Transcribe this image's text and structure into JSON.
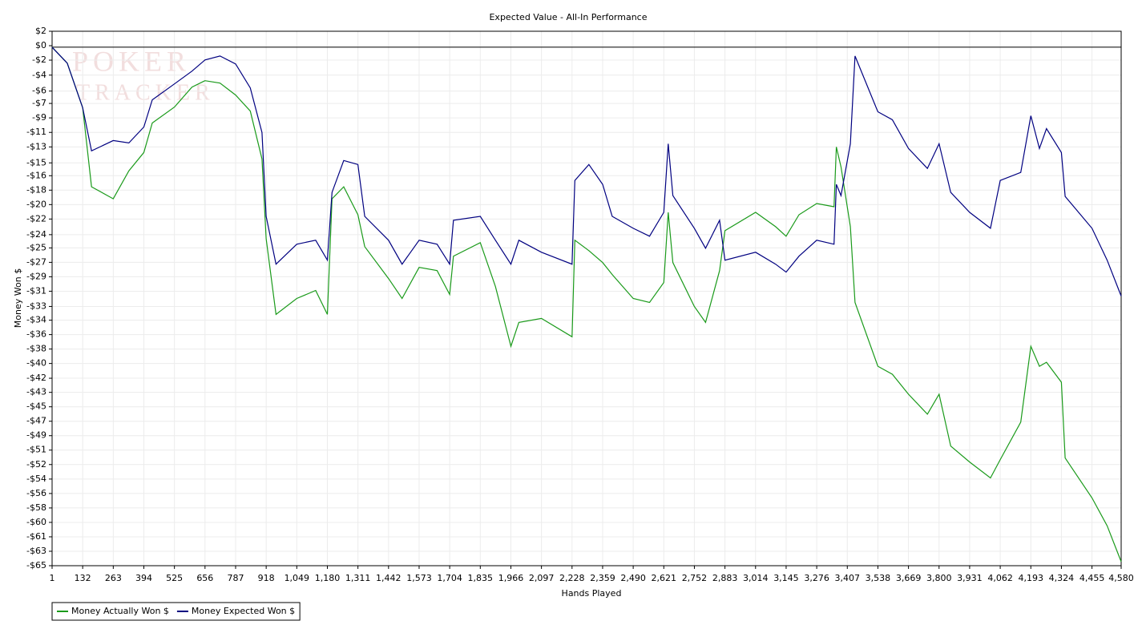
{
  "chart_data": {
    "type": "line",
    "title": "Expected Value - All-In Performance",
    "x_label": "Hands Played",
    "y_label": "Money Won $",
    "annotations": [
      "POKER",
      "TRACKER"
    ],
    "grid": true,
    "legend": "bottom-left",
    "xlim": [
      1,
      4580
    ],
    "ylim": [
      -65,
      2
    ],
    "xticks": [
      1,
      132,
      263,
      394,
      525,
      656,
      787,
      918,
      {
        "value": 1049,
        "label": "1,049"
      },
      {
        "value": 1180,
        "label": "1,180"
      },
      {
        "value": 1311,
        "label": "1,311"
      },
      {
        "value": 1442,
        "label": "1,442"
      },
      {
        "value": 1573,
        "label": "1,573"
      },
      {
        "value": 1704,
        "label": "1,704"
      },
      {
        "value": 1835,
        "label": "1,835"
      },
      {
        "value": 1966,
        "label": "1,966"
      },
      {
        "value": 2097,
        "label": "2,097"
      },
      {
        "value": 2228,
        "label": "2,228"
      },
      {
        "value": 2359,
        "label": "2,359"
      },
      {
        "value": 2490,
        "label": "2,490"
      },
      {
        "value": 2621,
        "label": "2,621"
      },
      {
        "value": 2752,
        "label": "2,752"
      },
      {
        "value": 2883,
        "label": "2,883"
      },
      {
        "value": 3014,
        "label": "3,014"
      },
      {
        "value": 3145,
        "label": "3,145"
      },
      {
        "value": 3276,
        "label": "3,276"
      },
      {
        "value": 3407,
        "label": "3,407"
      },
      {
        "value": 3538,
        "label": "3,538"
      },
      {
        "value": 3669,
        "label": "3,669"
      },
      {
        "value": 3800,
        "label": "3,800"
      },
      {
        "value": 3931,
        "label": "3,931"
      },
      {
        "value": 4062,
        "label": "4,062"
      },
      {
        "value": 4193,
        "label": "4,193"
      },
      {
        "value": 4324,
        "label": "4,324"
      },
      {
        "value": 4455,
        "label": "4,455"
      },
      {
        "value": 4580,
        "label": "4,580"
      }
    ],
    "yticks": [
      {
        "value": 2,
        "label": "$2"
      },
      {
        "value": 0.19,
        "label": "$0"
      },
      {
        "value": -1.62,
        "label": "-$2"
      },
      {
        "value": -3.5,
        "label": "-$4"
      },
      {
        "value": -5.5,
        "label": "-$6"
      },
      {
        "value": -7.05,
        "label": "-$7"
      },
      {
        "value": -8.86,
        "label": "-$9"
      },
      {
        "value": -10.68,
        "label": "-$11"
      },
      {
        "value": -12.5,
        "label": "-$13"
      },
      {
        "value": -14.5,
        "label": "-$15"
      },
      {
        "value": -16.11,
        "label": "-$16"
      },
      {
        "value": -17.92,
        "label": "-$18"
      },
      {
        "value": -19.73,
        "label": "-$20"
      },
      {
        "value": -21.54,
        "label": "-$22"
      },
      {
        "value": -23.5,
        "label": "-$24"
      },
      {
        "value": -25.16,
        "label": "-$25"
      },
      {
        "value": -26.97,
        "label": "-$27"
      },
      {
        "value": -28.78,
        "label": "-$29"
      },
      {
        "value": -30.59,
        "label": "-$31"
      },
      {
        "value": -32.5,
        "label": "-$33"
      },
      {
        "value": -34.22,
        "label": "-$34"
      },
      {
        "value": -36.03,
        "label": "-$36"
      },
      {
        "value": -37.84,
        "label": "-$38"
      },
      {
        "value": -39.65,
        "label": "-$40"
      },
      {
        "value": -41.5,
        "label": "-$42"
      },
      {
        "value": -43.27,
        "label": "-$43"
      },
      {
        "value": -45.08,
        "label": "-$45"
      },
      {
        "value": -46.89,
        "label": "-$47"
      },
      {
        "value": -48.7,
        "label": "-$49"
      },
      {
        "value": -50.51,
        "label": "-$51"
      },
      {
        "value": -52.32,
        "label": "-$52"
      },
      {
        "value": -54.14,
        "label": "-$54"
      },
      {
        "value": -55.95,
        "label": "-$56"
      },
      {
        "value": -57.76,
        "label": "-$58"
      },
      {
        "value": -59.57,
        "label": "-$60"
      },
      {
        "value": -61.38,
        "label": "-$61"
      },
      {
        "value": -63.19,
        "label": "-$63"
      },
      {
        "value": -65,
        "label": "-$65"
      }
    ],
    "x": [
      1,
      66,
      132,
      170,
      263,
      330,
      394,
      430,
      525,
      600,
      656,
      720,
      787,
      850,
      900,
      918,
      960,
      1049,
      1130,
      1180,
      1200,
      1250,
      1311,
      1340,
      1442,
      1500,
      1573,
      1650,
      1704,
      1720,
      1835,
      1900,
      1966,
      2000,
      2097,
      2228,
      2240,
      2300,
      2359,
      2400,
      2490,
      2560,
      2621,
      2640,
      2660,
      2752,
      2800,
      2860,
      2883,
      3014,
      3100,
      3145,
      3200,
      3276,
      3350,
      3360,
      3380,
      3420,
      3440,
      3538,
      3600,
      3669,
      3750,
      3800,
      3850,
      3931,
      4020,
      4062,
      4150,
      4193,
      4230,
      4260,
      4324,
      4340,
      4455,
      4520,
      4580
    ],
    "series": [
      {
        "name": "Money Actually Won $",
        "color": "#1a9a1a",
        "values": [
          0,
          -2,
          -7.6,
          -17.5,
          -19,
          -15.5,
          -13.2,
          -9.5,
          -7.5,
          -5,
          -4.2,
          -4.5,
          -6,
          -8,
          -14,
          -24,
          -33.5,
          -31.5,
          -30.5,
          -33.5,
          -19,
          -17.5,
          -21,
          -25,
          -29,
          -31.5,
          -27.6,
          -28,
          -31,
          -26.2,
          -24.5,
          -30,
          -37.5,
          -34.5,
          -34,
          -36.3,
          -24.2,
          -25.5,
          -27,
          -28.5,
          -31.5,
          -32,
          -29.5,
          -20.7,
          -27,
          -32.5,
          -34.5,
          -28,
          -23,
          -20.7,
          -22.5,
          -23.7,
          -21,
          -19.6,
          -20,
          -12.5,
          -15,
          -22.5,
          -32,
          -40,
          -41,
          -43.5,
          -46,
          -43.5,
          -50,
          -52,
          -54,
          -51.7,
          -47,
          -37.5,
          -40,
          -39.5,
          -42,
          -51.5,
          -56.5,
          -60,
          -64.5
        ]
      },
      {
        "name": "Money Expected Won $",
        "color": "#000080",
        "values": [
          0,
          -2,
          -7.6,
          -13,
          -11.7,
          -12,
          -10,
          -6.6,
          -4.6,
          -3,
          -1.6,
          -1.1,
          -2.1,
          -5.1,
          -10.7,
          -21.2,
          -27.2,
          -24.7,
          -24.2,
          -26.7,
          -18.2,
          -14.2,
          -14.7,
          -21.2,
          -24.2,
          -27.2,
          -24.2,
          -24.7,
          -27.2,
          -21.7,
          -21.2,
          -24.2,
          -27.2,
          -24.2,
          -25.7,
          -27.2,
          -16.7,
          -14.7,
          -17.2,
          -21.2,
          -22.7,
          -23.7,
          -20.7,
          -12.1,
          -18.6,
          -22.7,
          -25.2,
          -21.7,
          -26.7,
          -25.7,
          -27.2,
          -28.2,
          -26.2,
          -24.2,
          -24.7,
          -17.2,
          -18.6,
          -12.1,
          -1.1,
          -8.1,
          -9.1,
          -12.7,
          -15.2,
          -12.1,
          -18.2,
          -20.7,
          -22.7,
          -16.7,
          -15.7,
          -8.6,
          -12.7,
          -10.2,
          -13.2,
          -18.7,
          -22.7,
          -26.7,
          -31.2
        ]
      }
    ]
  }
}
